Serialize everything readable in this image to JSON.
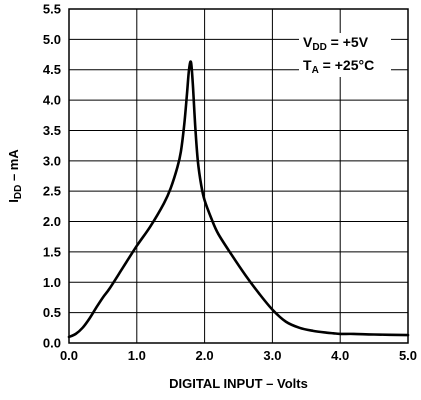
{
  "chart_data": {
    "type": "line",
    "xlabel": "DIGITAL INPUT – Volts",
    "ylabel": {
      "main": "I",
      "subscript": "DD",
      "suffix": " – mA"
    },
    "xlim": [
      0,
      5
    ],
    "ylim": [
      0,
      5.5
    ],
    "x_ticks": [
      "0.0",
      "1.0",
      "2.0",
      "3.0",
      "4.0",
      "5.0"
    ],
    "y_ticks": [
      "0.0",
      "0.5",
      "1.0",
      "1.5",
      "2.0",
      "2.5",
      "3.0",
      "3.5",
      "4.0",
      "4.5",
      "5.0",
      "5.5"
    ],
    "grid": true,
    "annotation": {
      "line1": {
        "main": "V",
        "subscript": "DD",
        "suffix": " = +5V"
      },
      "line2": {
        "main": "T",
        "subscript": "A",
        "suffix": " = +25°C"
      },
      "position": "top-right"
    },
    "series": [
      {
        "x": [
          0.0,
          0.1,
          0.2,
          0.3,
          0.4,
          0.5,
          0.6,
          0.8,
          1.0,
          1.2,
          1.4,
          1.5,
          1.6,
          1.65,
          1.7,
          1.74,
          1.77,
          1.8,
          1.83,
          1.86,
          1.9,
          1.95,
          2.0,
          2.1,
          2.2,
          2.4,
          2.6,
          2.8,
          3.0,
          3.2,
          3.4,
          3.6,
          3.8,
          3.9,
          4.0,
          4.2,
          4.5,
          5.0
        ],
        "y": [
          0.1,
          0.15,
          0.25,
          0.4,
          0.58,
          0.75,
          0.9,
          1.25,
          1.6,
          1.92,
          2.3,
          2.55,
          2.9,
          3.15,
          3.6,
          4.1,
          4.5,
          4.62,
          4.2,
          3.6,
          3.0,
          2.6,
          2.35,
          2.05,
          1.8,
          1.45,
          1.12,
          0.82,
          0.55,
          0.35,
          0.25,
          0.2,
          0.17,
          0.16,
          0.15,
          0.15,
          0.14,
          0.13
        ]
      }
    ]
  }
}
